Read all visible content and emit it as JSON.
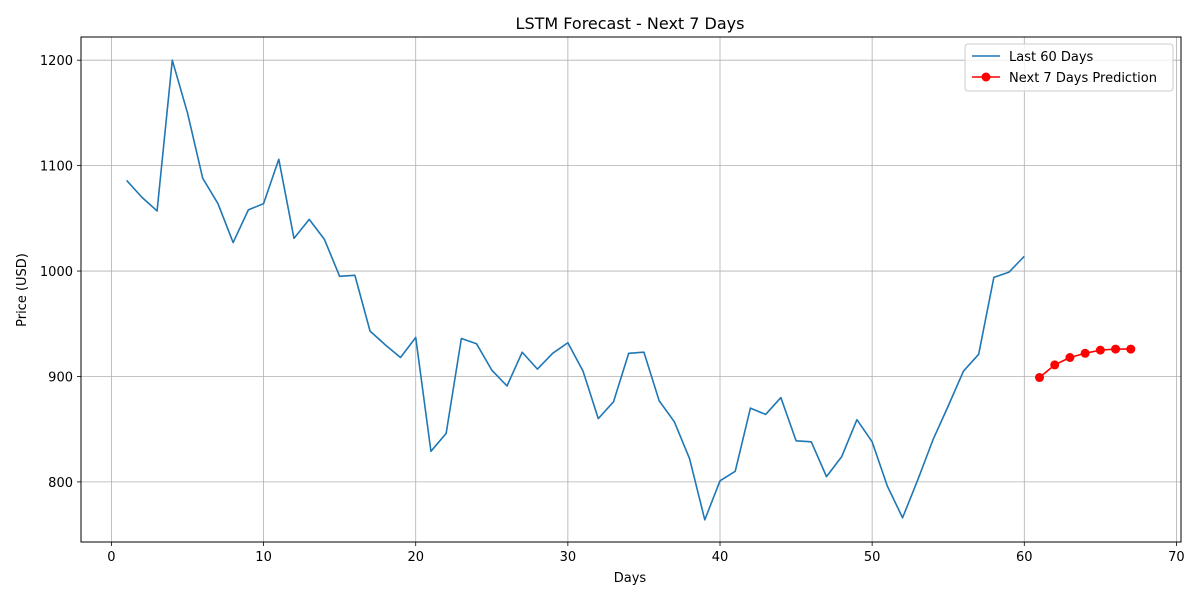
{
  "chart_data": {
    "type": "line",
    "title": "LSTM Forecast - Next 7 Days",
    "xlabel": "Days",
    "ylabel": "Price (USD)",
    "xlim": [
      -2,
      70.3
    ],
    "ylim": [
      743,
      1222
    ],
    "xticks": [
      0,
      10,
      20,
      30,
      40,
      50,
      60,
      70
    ],
    "yticks": [
      800,
      900,
      1000,
      1100,
      1200
    ],
    "grid": true,
    "legend_position": "top-right",
    "series": [
      {
        "name": "Last 60 Days",
        "color": "#1f77b4",
        "marker": "none",
        "x": [
          1,
          2,
          3,
          4,
          5,
          6,
          7,
          8,
          9,
          10,
          11,
          12,
          13,
          14,
          15,
          16,
          17,
          18,
          19,
          20,
          21,
          22,
          23,
          24,
          25,
          26,
          27,
          28,
          29,
          30,
          31,
          32,
          33,
          34,
          35,
          36,
          37,
          38,
          39,
          40,
          41,
          42,
          43,
          44,
          45,
          46,
          47,
          48,
          49,
          50,
          51,
          52,
          53,
          54,
          55,
          56,
          57,
          58,
          59,
          60
        ],
        "y": [
          1086,
          1070,
          1057,
          1200,
          1150,
          1088,
          1064,
          1027,
          1058,
          1064,
          1106,
          1031,
          1049,
          1030,
          995,
          996,
          943,
          930,
          918,
          937,
          829,
          846,
          936,
          931,
          906,
          891,
          923,
          907,
          922,
          932,
          905,
          860,
          876,
          922,
          923,
          877,
          857,
          822,
          764,
          801,
          810,
          870,
          864,
          880,
          839,
          838,
          805,
          824,
          859,
          838,
          796,
          766,
          802,
          840,
          872,
          905,
          921,
          994,
          999,
          1014
        ]
      },
      {
        "name": "Next 7 Days Prediction",
        "color": "#ff0000",
        "marker": "circle",
        "x": [
          61,
          62,
          63,
          64,
          65,
          66,
          67
        ],
        "y": [
          899,
          911,
          918,
          922,
          925,
          926,
          926
        ]
      }
    ]
  }
}
